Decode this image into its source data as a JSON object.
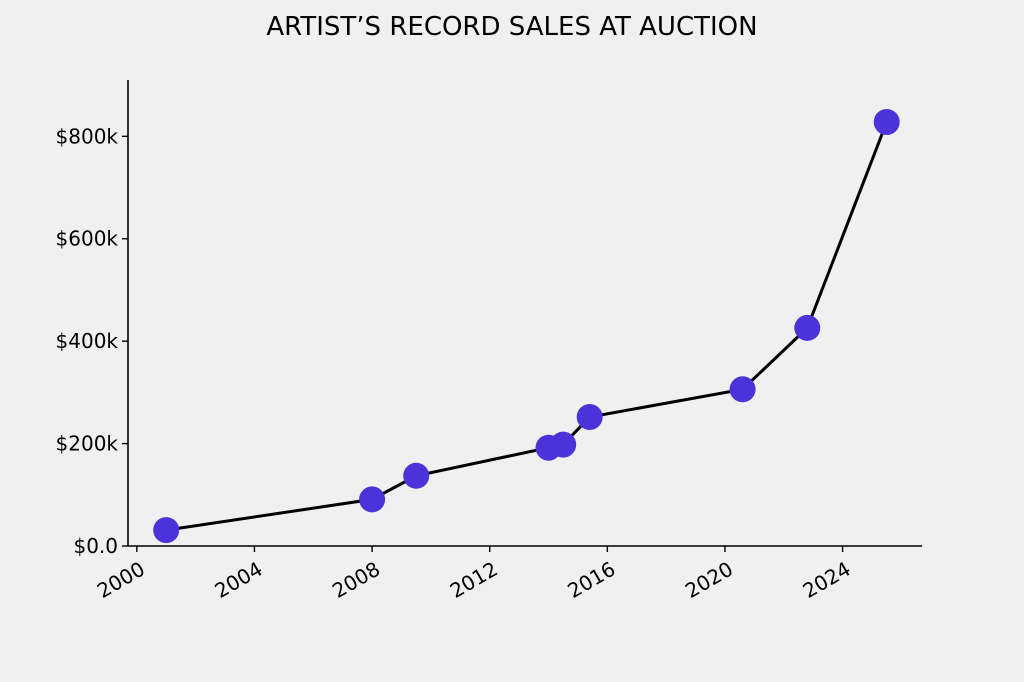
{
  "chart_data": {
    "type": "line",
    "title": "ARTIST’S RECORD SALES AT AUCTION",
    "xlabel": "",
    "ylabel": "",
    "xlim": [
      1999.7,
      2026.7
    ],
    "ylim": [
      0,
      910
    ],
    "x_ticks": [
      2000,
      2004,
      2008,
      2012,
      2016,
      2020,
      2024
    ],
    "x_tick_labels": [
      "2000",
      "2004",
      "2008",
      "2012",
      "2016",
      "2020",
      "2024"
    ],
    "y_ticks": [
      0,
      200,
      400,
      600,
      800
    ],
    "y_tick_labels": [
      "$0.0",
      "$200k",
      "$400k",
      "$600k",
      "$800k"
    ],
    "grid": false,
    "legend": "none",
    "series": [
      {
        "color": "#4b33d9",
        "line_color": "#000000",
        "points": [
          {
            "x": "2001",
            "y": 31
          },
          {
            "x": "2008",
            "y": 91
          },
          {
            "x": "2009.5",
            "y": 137
          },
          {
            "x": "2014",
            "y": 192
          },
          {
            "x": "2014.5",
            "y": 198
          },
          {
            "x": "2015.4",
            "y": 252
          },
          {
            "x": "2020.6",
            "y": 306
          },
          {
            "x": "2022.8",
            "y": 426
          },
          {
            "x": "2025.5",
            "y": 828
          }
        ]
      }
    ]
  }
}
